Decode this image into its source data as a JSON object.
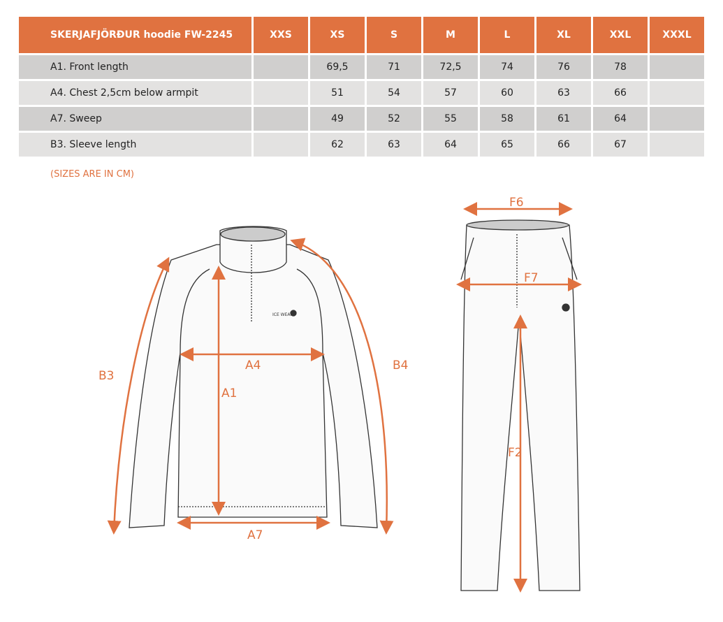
{
  "table": {
    "title": "SKERJAFJÖRÐUR hoodie FW-2245",
    "sizes": [
      "XXS",
      "XS",
      "S",
      "M",
      "L",
      "XL",
      "XXL",
      "XXXL"
    ],
    "rows": [
      {
        "label": "A1. Front length",
        "values": [
          "",
          "69,5",
          "71",
          "72,5",
          "74",
          "76",
          "78",
          ""
        ]
      },
      {
        "label": "A4. Chest 2,5cm below armpit",
        "values": [
          "",
          "51",
          "54",
          "57",
          "60",
          "63",
          "66",
          ""
        ]
      },
      {
        "label": "A7. Sweep",
        "values": [
          "",
          "49",
          "52",
          "55",
          "58",
          "61",
          "64",
          ""
        ]
      },
      {
        "label": "B3. Sleeve length",
        "values": [
          "",
          "62",
          "63",
          "64",
          "65",
          "66",
          "67",
          ""
        ]
      }
    ]
  },
  "note": "(SIZES ARE IN CM)",
  "labels": {
    "b3": "B3",
    "a4": "A4",
    "a1": "A1",
    "b4": "B4",
    "a7": "A7",
    "f6": "F6",
    "f7": "F7",
    "f2": "F2"
  },
  "logo": "ICE WEAR",
  "colors": {
    "accent": "#e07240",
    "row_dark": "#d0cfce",
    "row_light": "#e3e2e1"
  }
}
